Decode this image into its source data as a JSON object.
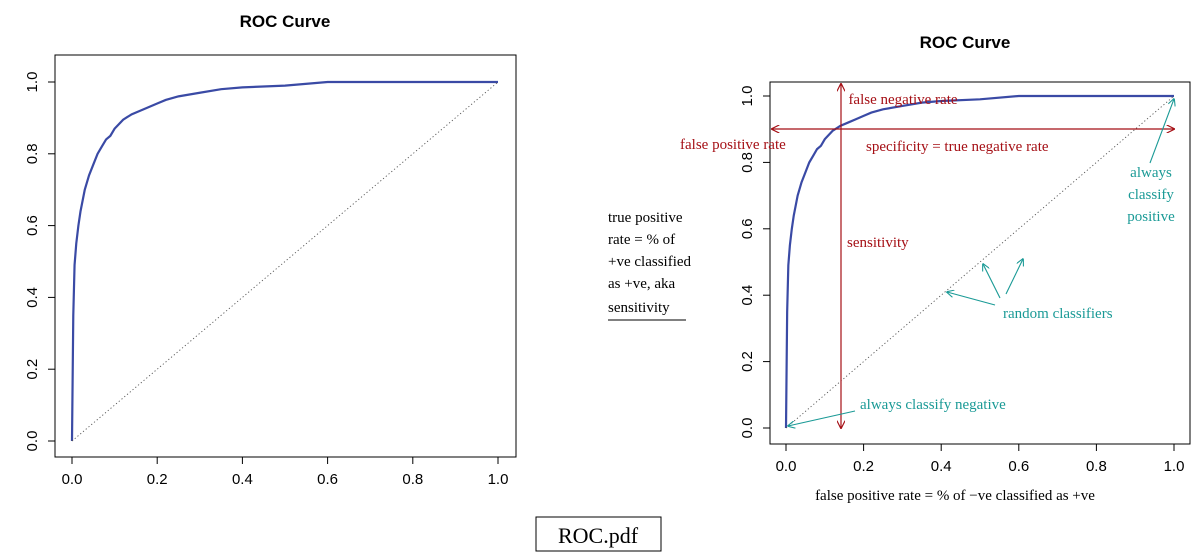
{
  "footer": {
    "filename": "ROC.pdf"
  },
  "side_note": {
    "lines": [
      "true positive",
      "rate = % of",
      "+ve classified",
      "as +ve, aka",
      "sensitivity"
    ]
  },
  "colors": {
    "curve": "#3a4aa5",
    "annotation_red": "#a50f15",
    "annotation_teal": "#1a9a96"
  },
  "chart_data": [
    {
      "type": "line",
      "title": "ROC Curve",
      "xlabel": "",
      "ylabel": "",
      "xlim": [
        0,
        1
      ],
      "ylim": [
        0,
        1
      ],
      "x_ticks": [
        "0.0",
        "0.2",
        "0.4",
        "0.6",
        "0.8",
        "1.0"
      ],
      "y_ticks": [
        "0.0",
        "0.2",
        "0.4",
        "0.6",
        "0.8",
        "1.0"
      ],
      "grid": false,
      "series": [
        {
          "x": [
            0,
            0.003,
            0.006,
            0.01,
            0.015,
            0.02,
            0.03,
            0.04,
            0.05,
            0.06,
            0.07,
            0.08,
            0.09,
            0.1,
            0.12,
            0.14,
            0.16,
            0.18,
            0.2,
            0.22,
            0.25,
            0.3,
            0.35,
            0.4,
            0.5,
            0.6,
            1.0
          ],
          "y": [
            0,
            0.35,
            0.49,
            0.55,
            0.6,
            0.64,
            0.7,
            0.74,
            0.77,
            0.8,
            0.82,
            0.84,
            0.85,
            0.87,
            0.895,
            0.91,
            0.92,
            0.93,
            0.94,
            0.95,
            0.96,
            0.97,
            0.98,
            0.985,
            0.99,
            1.0,
            1.0
          ]
        },
        {
          "style": "dotted",
          "x": [
            0,
            1
          ],
          "y": [
            0,
            1
          ]
        }
      ]
    },
    {
      "type": "line",
      "title": "ROC Curve",
      "xlabel": "false positive rate = % of −ve classified as +ve",
      "ylabel": "",
      "xlim": [
        0,
        1
      ],
      "ylim": [
        0,
        1
      ],
      "x_ticks": [
        "0.0",
        "0.2",
        "0.4",
        "0.6",
        "0.8",
        "1.0"
      ],
      "y_ticks": [
        "0.0",
        "0.2",
        "0.4",
        "0.6",
        "0.8",
        "1.0"
      ],
      "grid": false,
      "series": [
        {
          "x": [
            0,
            0.003,
            0.006,
            0.01,
            0.015,
            0.02,
            0.03,
            0.04,
            0.05,
            0.06,
            0.07,
            0.08,
            0.09,
            0.1,
            0.12,
            0.14,
            0.16,
            0.18,
            0.2,
            0.22,
            0.25,
            0.3,
            0.35,
            0.4,
            0.5,
            0.6,
            1.0
          ],
          "y": [
            0,
            0.35,
            0.49,
            0.55,
            0.6,
            0.64,
            0.7,
            0.74,
            0.77,
            0.8,
            0.82,
            0.84,
            0.85,
            0.87,
            0.895,
            0.91,
            0.92,
            0.93,
            0.94,
            0.95,
            0.96,
            0.97,
            0.98,
            0.985,
            0.99,
            1.0,
            1.0
          ]
        },
        {
          "style": "dotted",
          "x": [
            0,
            1
          ],
          "y": [
            0,
            1
          ]
        }
      ],
      "operating_point": {
        "x": 0.14,
        "y": 0.9
      },
      "annotations": {
        "false_negative_rate": "false negative rate",
        "false_positive_rate": "false positive rate",
        "specificity": "specificity = true negative rate",
        "sensitivity": "sensitivity",
        "always_positive": [
          "always",
          "classify",
          "positive"
        ],
        "random": "random classifiers",
        "always_negative": "always classify negative"
      }
    }
  ]
}
